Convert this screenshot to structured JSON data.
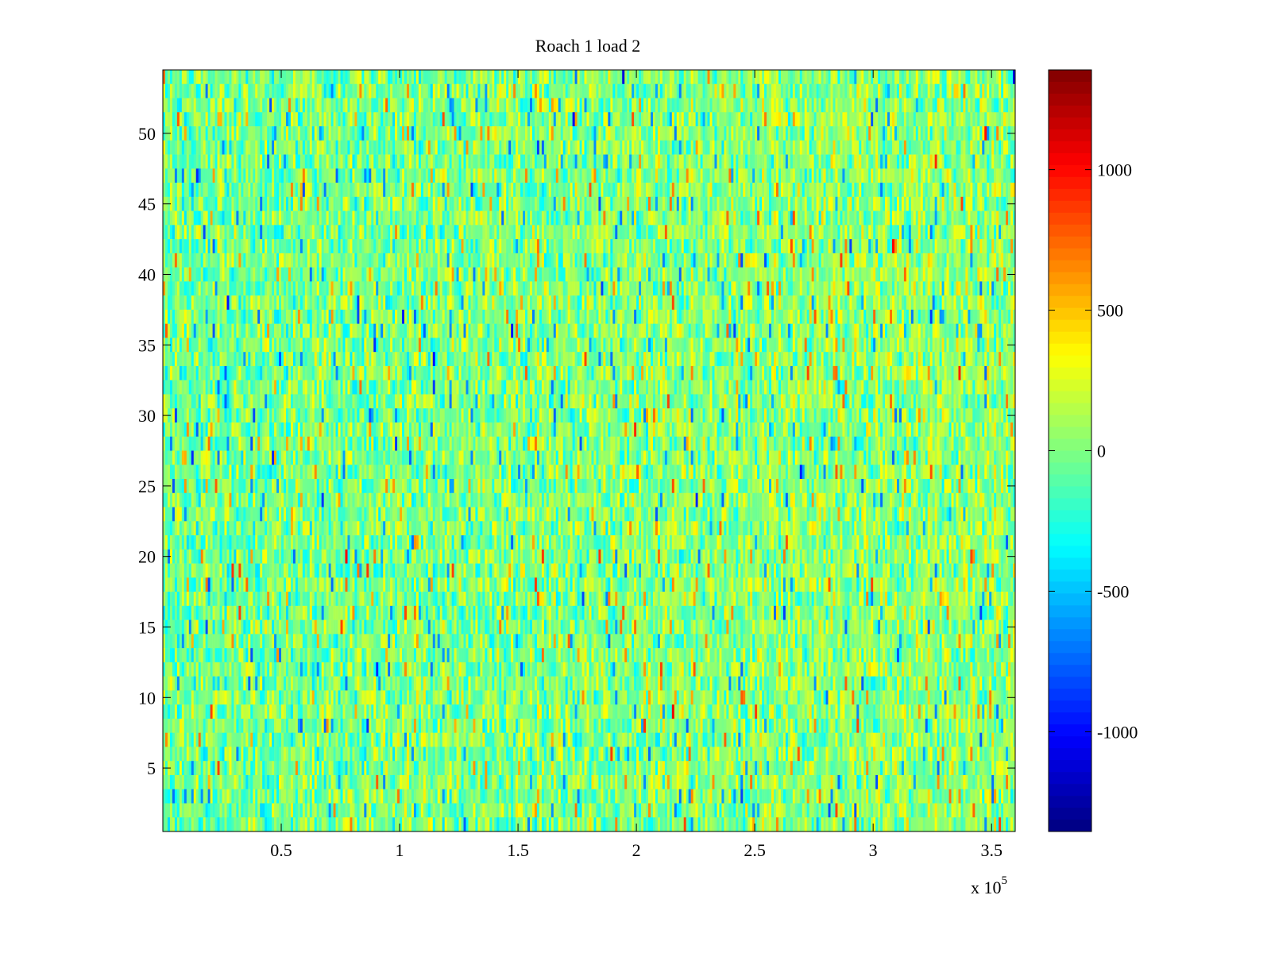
{
  "chart_data": {
    "type": "heatmap",
    "title": "Roach 1 load 2",
    "xlabel": "",
    "ylabel": "",
    "x_exponent_label": "x 10",
    "x_exponent": "5",
    "xlim": [
      0,
      360000
    ],
    "ylim": [
      0.5,
      54.5
    ],
    "rows": 54,
    "x_ticks": [
      50000,
      100000,
      150000,
      200000,
      250000,
      300000,
      350000
    ],
    "x_tick_labels": [
      "0.5",
      "1",
      "1.5",
      "2",
      "2.5",
      "3",
      "3.5"
    ],
    "y_ticks": [
      5,
      10,
      15,
      20,
      25,
      30,
      35,
      40,
      45,
      50
    ],
    "y_tick_labels": [
      "5",
      "10",
      "15",
      "20",
      "25",
      "30",
      "35",
      "40",
      "45",
      "50"
    ],
    "colormap": "jet",
    "clim": [
      -1355,
      1355
    ],
    "colorbar_ticks": [
      1000,
      500,
      0,
      -500,
      -1000
    ],
    "colorbar_tick_labels": [
      "1000",
      "500",
      "0",
      "-500",
      "-1000"
    ],
    "value_distribution": {
      "mean": -40,
      "std": 210,
      "trend_right_increase": 90,
      "min": -1355,
      "max": 1355
    },
    "grid": false
  }
}
